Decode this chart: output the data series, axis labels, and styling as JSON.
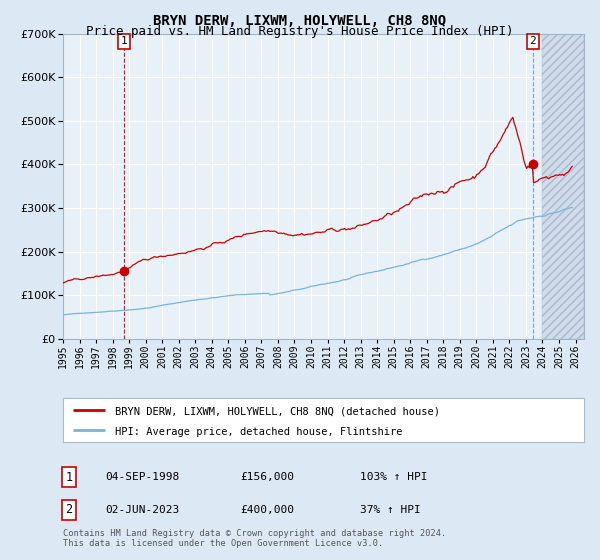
{
  "title": "BRYN DERW, LIXWM, HOLYWELL, CH8 8NQ",
  "subtitle": "Price paid vs. HM Land Registry's House Price Index (HPI)",
  "legend_line1": "BRYN DERW, LIXWM, HOLYWELL, CH8 8NQ (detached house)",
  "legend_line2": "HPI: Average price, detached house, Flintshire",
  "annotation1_label": "1",
  "annotation1_date": "04-SEP-1998",
  "annotation1_price": "£156,000",
  "annotation1_hpi": "103% ↑ HPI",
  "annotation2_label": "2",
  "annotation2_date": "02-JUN-2023",
  "annotation2_price": "£400,000",
  "annotation2_hpi": "37% ↑ HPI",
  "footnote1": "Contains HM Land Registry data © Crown copyright and database right 2024.",
  "footnote2": "This data is licensed under the Open Government Licence v3.0.",
  "xmin": 1995.0,
  "xmax": 2026.5,
  "ymin": 0,
  "ymax": 700000,
  "sale1_x": 1998.67,
  "sale1_y": 156000,
  "sale2_x": 2023.42,
  "sale2_y": 400000,
  "bg_color": "#dce9f5",
  "plot_bg": "#e8f0f8",
  "red_color": "#cc0000",
  "blue_color": "#7bb3d9",
  "grid_color": "#ffffff",
  "title_fontsize": 10,
  "subtitle_fontsize": 9,
  "hatch_start": 2024.0,
  "yticks": [
    0,
    100000,
    200000,
    300000,
    400000,
    500000,
    600000,
    700000
  ],
  "xtick_years": [
    1995,
    1996,
    1997,
    1998,
    1999,
    2000,
    2001,
    2002,
    2003,
    2004,
    2005,
    2006,
    2007,
    2008,
    2009,
    2010,
    2011,
    2012,
    2013,
    2014,
    2015,
    2016,
    2017,
    2018,
    2019,
    2020,
    2021,
    2022,
    2023,
    2024,
    2025,
    2026
  ]
}
